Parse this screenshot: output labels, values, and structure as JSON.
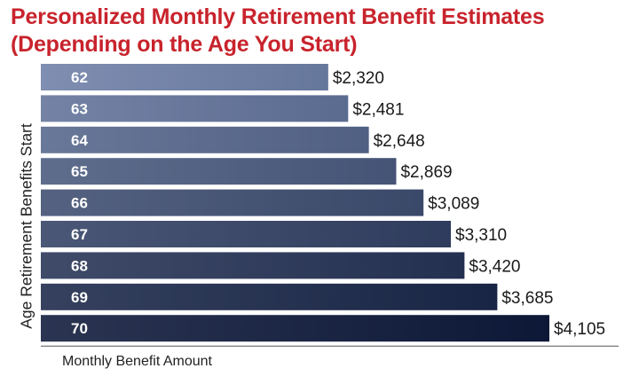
{
  "chart_data": {
    "type": "bar",
    "orientation": "horizontal",
    "title": "Personalized Monthly Retirement Benefit Estimates",
    "subtitle": "(Depending on the Age You Start)",
    "xlabel": "Monthly Benefit Amount",
    "ylabel": "Age Retirement Benefits Start",
    "categories": [
      "62",
      "63",
      "64",
      "65",
      "66",
      "67",
      "68",
      "69",
      "70"
    ],
    "values": [
      2320,
      2481,
      2648,
      2869,
      3089,
      3310,
      3420,
      3685,
      4105
    ],
    "value_labels": [
      "$2,320",
      "$2,481",
      "$2,648",
      "$2,869",
      "$3,089",
      "$3,310",
      "$3,420",
      "$3,685",
      "$4,105"
    ],
    "xlim": [
      0,
      4105
    ],
    "grid": false,
    "colors": {
      "title": "#c8232c",
      "bar_lightest": "#6d7fa6",
      "bar_darkest": "#0e1a3a"
    }
  }
}
